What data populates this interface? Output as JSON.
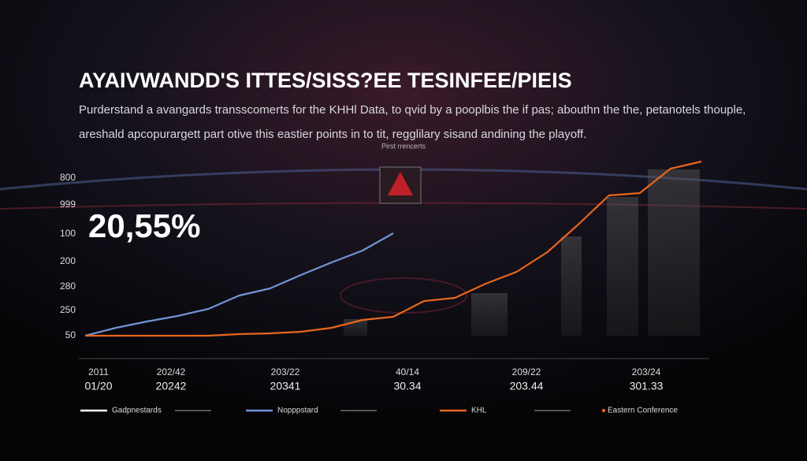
{
  "chart_data": {
    "type": "line",
    "title": "AYAIVWANDD'S ITTES/SISS?EE TESINFEE/PIEIS",
    "subtitle_lines": [
      "Purderstand a avangards transscomerts for the KHHl Data, to qvid by a pooplbis the if pas; abouthn the the, petanotels thouple,",
      "areshald apcopurargett part otive this eastier points in to tit, regglilary sisand andining the playoff."
    ],
    "caption": "Pirst rrencerts",
    "annotation": "20,55%",
    "y_axis_labels": [
      "800",
      "999",
      "100",
      "200",
      "280",
      "250",
      "50"
    ],
    "x_labels_top": [
      "2011",
      "202/42",
      "203/22",
      "40/14",
      "209/22",
      "203/24"
    ],
    "x_labels_bottom": [
      "01/20",
      "20242",
      "20341",
      "30.34",
      "203.44",
      "301.33"
    ],
    "ylim": [
      0,
      115
    ],
    "series": [
      {
        "name": "Nopppstard",
        "color": "#7393d6",
        "values": [
          0,
          5,
          9,
          12.5,
          17,
          25.5,
          30,
          38.5,
          46.5,
          54,
          65,
          null,
          null,
          null,
          null,
          null,
          null,
          null,
          null,
          null,
          null
        ]
      },
      {
        "name": "KHL",
        "color": "#e8661e",
        "values": [
          0,
          0,
          0,
          0,
          0,
          1,
          1.5,
          2.5,
          5,
          10,
          12,
          22,
          24,
          33,
          40.5,
          53,
          70.5,
          89,
          90.5,
          106,
          110.5
        ]
      }
    ],
    "extra_legend": [
      {
        "name": "Gadpnestards",
        "color": "#ffffff"
      },
      {
        "name": "Eastern Conference",
        "color": "#e8661e"
      }
    ]
  }
}
